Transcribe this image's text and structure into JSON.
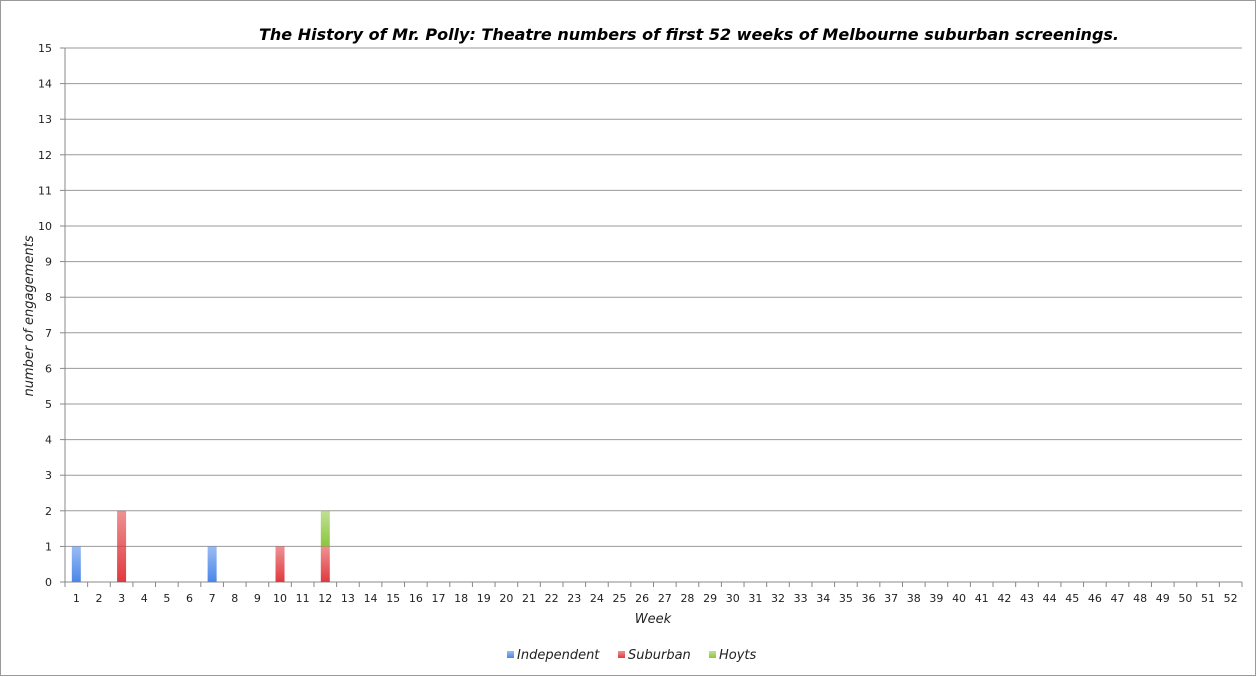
{
  "chart_data": {
    "type": "bar",
    "stacked": true,
    "title": "The History of Mr. Polly: Theatre numbers of first 52 weeks of Melbourne suburban screenings.",
    "xlabel": "Week",
    "ylabel": "number of engagements",
    "ylim": [
      0,
      15
    ],
    "ytick_step": 1,
    "grid": true,
    "legend_position": "bottom",
    "categories": [
      "1",
      "2",
      "3",
      "4",
      "5",
      "6",
      "7",
      "8",
      "9",
      "10",
      "11",
      "12",
      "13",
      "14",
      "15",
      "16",
      "17",
      "18",
      "19",
      "20",
      "21",
      "22",
      "23",
      "24",
      "25",
      "26",
      "27",
      "28",
      "29",
      "30",
      "31",
      "32",
      "33",
      "34",
      "35",
      "36",
      "37",
      "38",
      "39",
      "40",
      "41",
      "42",
      "43",
      "44",
      "45",
      "46",
      "47",
      "48",
      "49",
      "50",
      "51",
      "52"
    ],
    "series": [
      {
        "name": "Independent",
        "color": "#4a86e8",
        "values": [
          1,
          0,
          0,
          0,
          0,
          0,
          1,
          0,
          0,
          0,
          0,
          0,
          0,
          0,
          0,
          0,
          0,
          0,
          0,
          0,
          0,
          0,
          0,
          0,
          0,
          0,
          0,
          0,
          0,
          0,
          0,
          0,
          0,
          0,
          0,
          0,
          0,
          0,
          0,
          0,
          0,
          0,
          0,
          0,
          0,
          0,
          0,
          0,
          0,
          0,
          0,
          0
        ]
      },
      {
        "name": "Suburban",
        "color": "#e0393e",
        "values": [
          0,
          0,
          2,
          0,
          0,
          0,
          0,
          0,
          0,
          1,
          0,
          1,
          0,
          0,
          0,
          0,
          0,
          0,
          0,
          0,
          0,
          0,
          0,
          0,
          0,
          0,
          0,
          0,
          0,
          0,
          0,
          0,
          0,
          0,
          0,
          0,
          0,
          0,
          0,
          0,
          0,
          0,
          0,
          0,
          0,
          0,
          0,
          0,
          0,
          0,
          0,
          0
        ]
      },
      {
        "name": "Hoyts",
        "color": "#8cc63f",
        "values": [
          0,
          0,
          0,
          0,
          0,
          0,
          0,
          0,
          0,
          0,
          0,
          1,
          0,
          0,
          0,
          0,
          0,
          0,
          0,
          0,
          0,
          0,
          0,
          0,
          0,
          0,
          0,
          0,
          0,
          0,
          0,
          0,
          0,
          0,
          0,
          0,
          0,
          0,
          0,
          0,
          0,
          0,
          0,
          0,
          0,
          0,
          0,
          0,
          0,
          0,
          0,
          0
        ]
      }
    ]
  }
}
